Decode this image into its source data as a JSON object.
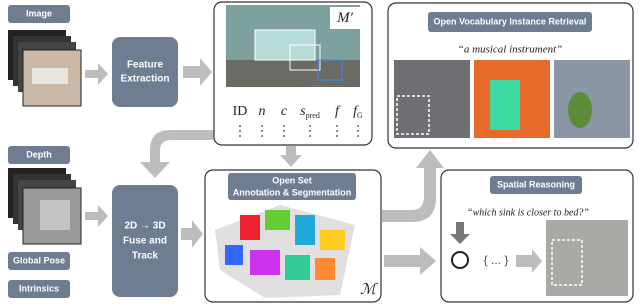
{
  "inputs": {
    "image": "Image",
    "depth": "Depth",
    "global_pose": "Global Pose",
    "intrinsics": "Intrinsics"
  },
  "modules": {
    "feature_extraction": [
      "Feature",
      "Extraction"
    ],
    "fuse_track": [
      "2D → 3D",
      "Fuse and",
      "Track"
    ]
  },
  "map_panel": {
    "symbol": "M′",
    "attributes": [
      {
        "text": "ID"
      },
      {
        "text": "n"
      },
      {
        "text": "c"
      },
      {
        "text": "s",
        "sub": "pred"
      },
      {
        "text": "f"
      },
      {
        "text": "f",
        "sub": "G"
      }
    ]
  },
  "segmentation_panel": {
    "title": [
      "Open Set",
      "Annotation & Segmentation"
    ],
    "symbol": "ℳ"
  },
  "retrieval_panel": {
    "title": "Open Vocabulary Instance Retrieval",
    "query": "“a musical instrument”"
  },
  "reasoning_panel": {
    "title": "Spatial Reasoning",
    "query": "“which sink is closer to bed?”",
    "placeholder": "{ ... }"
  }
}
